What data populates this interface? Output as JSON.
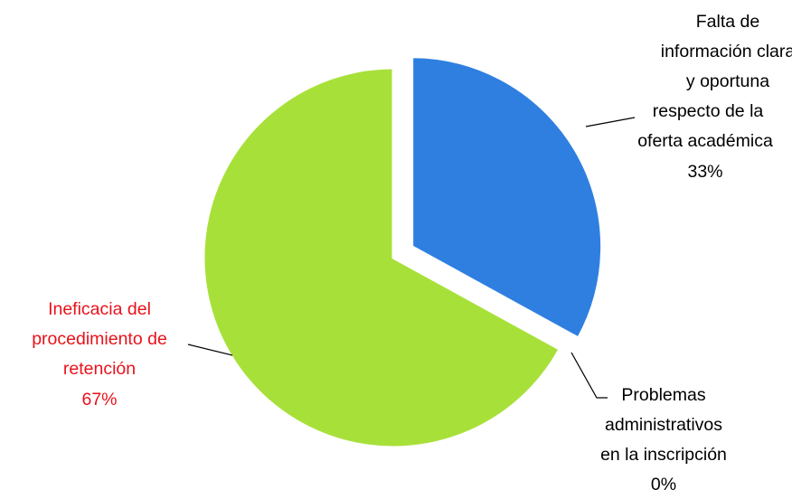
{
  "chart_data": {
    "type": "pie",
    "title": "",
    "slices": [
      {
        "key": "info",
        "label_lines": [
          "Falta de",
          "información clara",
          "y oportuna",
          "respecto de la",
          "oferta académica"
        ],
        "value": 33,
        "value_label": "33%",
        "color": "#2f7fe0",
        "label_color": "#000000",
        "exploded": true
      },
      {
        "key": "admin",
        "label_lines": [
          "Problemas",
          "administrativos",
          "en la inscripción"
        ],
        "value": 0,
        "value_label": "0%",
        "color": "#ffffff",
        "label_color": "#000000",
        "exploded": false
      },
      {
        "key": "retencion",
        "label_lines": [
          "Ineficacia del",
          "procedimiento de",
          "retención"
        ],
        "value": 67,
        "value_label": "67%",
        "color": "#a8e03a",
        "label_color": "#e8121b",
        "exploded": false
      }
    ],
    "legend": "none",
    "start": "top",
    "direction": "clockwise"
  }
}
